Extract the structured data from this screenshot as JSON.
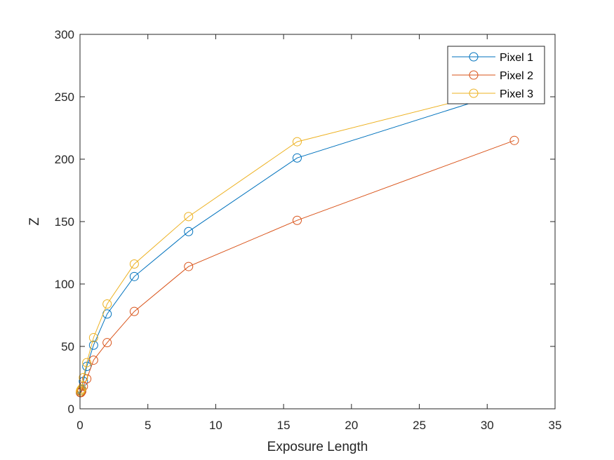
{
  "chart_data": {
    "type": "line",
    "title": "",
    "xlabel": "Exposure Length",
    "ylabel": "Z",
    "xlim": [
      0,
      35
    ],
    "ylim": [
      0,
      300
    ],
    "xticks": [
      0,
      5,
      10,
      15,
      20,
      25,
      30,
      35
    ],
    "yticks": [
      0,
      50,
      100,
      150,
      200,
      250,
      300
    ],
    "grid": false,
    "legend": "top-right",
    "marker": "open-circle",
    "series": [
      {
        "name": "Pixel 1",
        "color": "#0072BD",
        "x": [
          0.03125,
          0.0625,
          0.125,
          0.25,
          0.5,
          1,
          2,
          4,
          8,
          16,
          32
        ],
        "y": [
          13,
          14,
          15,
          22,
          34,
          51,
          76,
          106,
          142,
          201,
          256
        ]
      },
      {
        "name": "Pixel 2",
        "color": "#D95319",
        "x": [
          0.03125,
          0.0625,
          0.125,
          0.25,
          0.5,
          1,
          2,
          4,
          8,
          16,
          32
        ],
        "y": [
          13,
          13,
          14,
          18,
          24,
          39,
          53,
          78,
          114,
          151,
          215
        ]
      },
      {
        "name": "Pixel 3",
        "color": "#EDB120",
        "x": [
          0.03125,
          0.0625,
          0.125,
          0.25,
          0.5,
          1,
          2,
          4,
          8,
          16,
          32
        ],
        "y": [
          14,
          15,
          16,
          25,
          37,
          57,
          84,
          116,
          154,
          214,
          258
        ]
      }
    ]
  }
}
